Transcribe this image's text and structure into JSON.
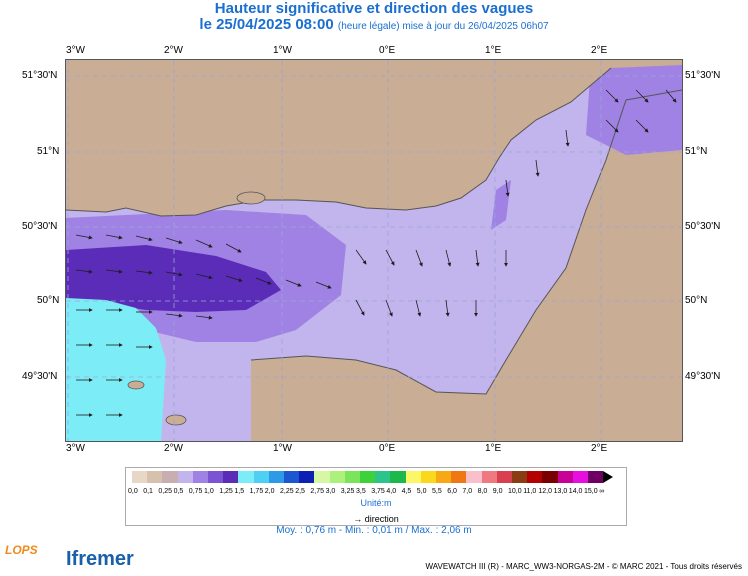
{
  "header": {
    "title": "Hauteur significative et direction des vagues",
    "date_line": "le 25/04/2025 08:00",
    "update_note": "(heure légale) mise à jour du 26/04/2025 06h07"
  },
  "map": {
    "lon_labels": [
      "3°W",
      "2°W",
      "1°W",
      "0°E",
      "1°E",
      "2°E"
    ],
    "lat_labels": [
      "51°30'N",
      "51°N",
      "50°30'N",
      "50°N",
      "49°30'N"
    ],
    "colors": {
      "land": "#c9ad94",
      "coast": "#555555",
      "grid": "#9aa6d8",
      "arrow": "#1e1e1e"
    }
  },
  "legend": {
    "labels": [
      "0,0",
      "0,1",
      "0,25",
      "0,5",
      "0,75",
      "1,0",
      "1,25",
      "1,5",
      "1,75",
      "2,0",
      "2,25",
      "2,5",
      "2,75",
      "3,0",
      "3,25",
      "3,5",
      "3,75",
      "4,0",
      "4,5",
      "5,0",
      "5,5",
      "6,0",
      "7,0",
      "8,0",
      "9,0",
      "10,0",
      "11,0",
      "12,0",
      "13,0",
      "14,0",
      "15,0",
      "∞"
    ],
    "colors": [
      "#e8d6c6",
      "#d6c1ac",
      "#c8aeb0",
      "#c2b4ec",
      "#9f82e4",
      "#7b54d4",
      "#5b2cb8",
      "#7cecf6",
      "#4ed0f4",
      "#2c9ae6",
      "#1c56d0",
      "#0c20b4",
      "#d8f7a4",
      "#aef07c",
      "#7ce45a",
      "#3cd23c",
      "#2cc48a",
      "#1cb84c",
      "#fbf766",
      "#fbd81c",
      "#f8a814",
      "#f07814",
      "#f8c0cc",
      "#f07880",
      "#d84050",
      "#8c3c14",
      "#b40000",
      "#780000",
      "#c80096",
      "#e60fdf",
      "#6e0064"
    ],
    "unit": "Unité:m",
    "direction_label": "direction"
  },
  "stats": "Moy. : 0,76 m   -   Min. : 0,01 m / Max. : 2,06 m",
  "footer": "WAVEWATCH III (R) - MARC_WW3-NORGAS-2M - © MARC 2021 - Tous droits réservés",
  "logos": {
    "lops": "LOPS",
    "ifremer": "Ifremer"
  }
}
